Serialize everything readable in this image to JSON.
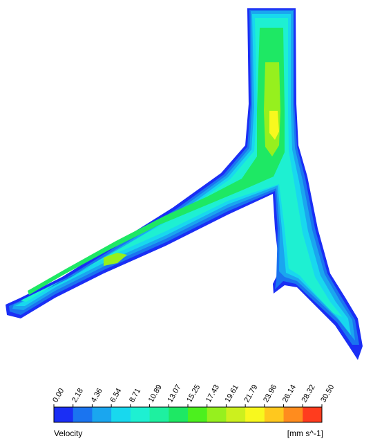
{
  "legend": {
    "variable": "Velocity",
    "unit": "[mm s^-1]",
    "ticks": [
      "0.00",
      "2.18",
      "4.36",
      "6.54",
      "8.71",
      "10.89",
      "13.07",
      "15.25",
      "17.43",
      "19.61",
      "21.79",
      "23.96",
      "26.14",
      "28.32",
      "30.50"
    ],
    "colors": [
      "#1a2ef5",
      "#1a74f0",
      "#1aa6ef",
      "#18d8ee",
      "#1ef0d2",
      "#1ef0a0",
      "#1ee864",
      "#4cf01e",
      "#96f01e",
      "#ccf01e",
      "#f8f81e",
      "#ffc81e",
      "#ff8c1e",
      "#ff3c1e"
    ]
  },
  "contour_palette": {
    "outer": "#1a2ef5",
    "band1": "#1a74f0",
    "band2": "#1aa6ef",
    "band3": "#18d8ee",
    "band4": "#1ef0d2",
    "band5": "#1ee864",
    "band6": "#96f01e",
    "peak": "#f8f81e"
  }
}
